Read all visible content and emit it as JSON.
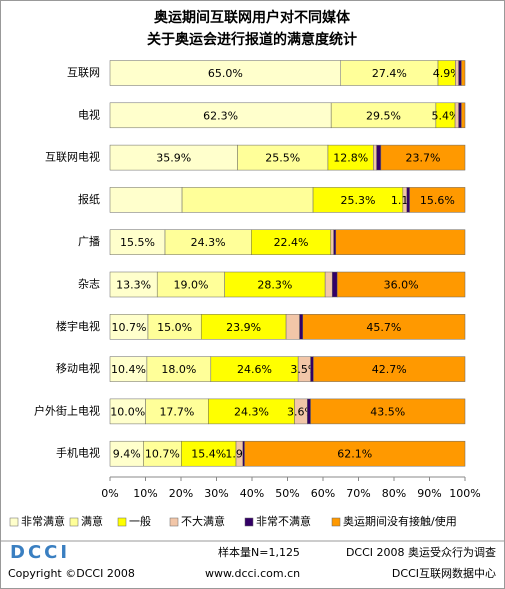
{
  "chart_data": {
    "type": "stacked-barh",
    "title": [
      "奥运期间互联网用户对不同媒体",
      "关于奥运会进行报道的满意度统计"
    ],
    "categories": [
      "互联网",
      "电视",
      "互联网电视",
      "报纸",
      "广播",
      "杂志",
      "楼宇电视",
      "移动电视",
      "户外街上电视",
      "手机电视"
    ],
    "series": [
      {
        "name": "非常满意",
        "color": "#FFFFCC",
        "values": [
          65.0,
          62.3,
          35.9,
          20.3,
          15.5,
          13.3,
          10.7,
          10.4,
          10.0,
          9.4
        ],
        "value_labels": [
          "65.0%",
          "62.3%",
          "35.9%",
          null,
          "15.5%",
          "13.3%",
          "10.7%",
          "10.4%",
          "10.0%",
          "9.4%"
        ]
      },
      {
        "name": "满意",
        "color": "#FFFF99",
        "values": [
          27.4,
          29.5,
          25.5,
          36.9,
          24.3,
          19.0,
          15.0,
          18.0,
          17.7,
          10.7
        ],
        "value_labels": [
          "27.4%",
          "29.5%",
          "25.5%",
          null,
          "24.3%",
          "19.0%",
          "15.0%",
          "18.0%",
          "17.7%",
          "10.7%"
        ]
      },
      {
        "name": "一般",
        "color": "#FFFF00",
        "values": [
          4.9,
          5.4,
          12.8,
          25.3,
          22.4,
          28.3,
          23.9,
          24.6,
          24.3,
          15.4
        ],
        "value_labels": [
          "4.9%",
          "5.4%",
          "12.8%",
          "25.3%",
          "22.4%",
          "28.3%",
          "23.9%",
          "24.6%",
          "24.3%",
          "15.4%"
        ]
      },
      {
        "name": "不大满意",
        "color": "#F2C6A8",
        "values": [
          0.9,
          1.0,
          0.9,
          1.1,
          0.8,
          2.0,
          3.8,
          3.5,
          3.6,
          1.9
        ],
        "value_labels": [
          null,
          null,
          null,
          "1.1%",
          null,
          null,
          null,
          "3.5%",
          "3.6%",
          "1.9%"
        ]
      },
      {
        "name": "非常不满意",
        "color": "#330066",
        "values": [
          0.8,
          0.8,
          1.2,
          0.8,
          0.6,
          1.4,
          0.9,
          0.8,
          0.9,
          0.5
        ],
        "value_labels": [
          null,
          null,
          null,
          null,
          null,
          null,
          null,
          null,
          null,
          null
        ]
      },
      {
        "name": "奥运期间没有接触/使用",
        "color": "#FF9900",
        "values": [
          1.0,
          1.0,
          23.7,
          15.6,
          36.4,
          36.0,
          45.7,
          42.7,
          43.5,
          62.1
        ],
        "value_labels": [
          null,
          null,
          "23.7%",
          "15.6%",
          null,
          "36.0%",
          "45.7%",
          "42.7%",
          "43.5%",
          "62.1%"
        ]
      }
    ],
    "xlim": [
      0,
      100
    ],
    "xticks": [
      {
        "value": 0,
        "label": "0%"
      },
      {
        "value": 10,
        "label": "10%"
      },
      {
        "value": 20,
        "label": "20%"
      },
      {
        "value": 30,
        "label": "30%"
      },
      {
        "value": 40,
        "label": "40%"
      },
      {
        "value": 50,
        "label": "50%"
      },
      {
        "value": 60,
        "label": "60%"
      },
      {
        "value": 70,
        "label": "70%"
      },
      {
        "value": 80,
        "label": "80%"
      },
      {
        "value": 90,
        "label": "90%"
      },
      {
        "value": 100,
        "label": "100%"
      }
    ],
    "legend": "bottom",
    "footer": {
      "logo": "DCCI",
      "sample": "样本量N=1,125",
      "survey": "DCCI 2008 奥运受众行为调查",
      "copyright": "Copyright ©DCCI 2008",
      "url": "www.dcci.com.cn",
      "org": "DCCI互联网数据中心"
    }
  }
}
